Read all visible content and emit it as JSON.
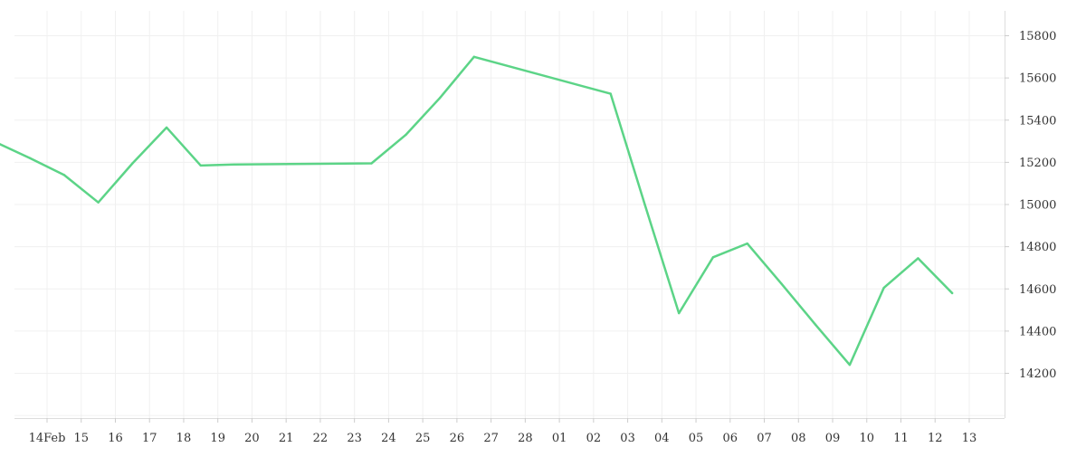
{
  "chart_data": {
    "type": "line",
    "title": "",
    "xlabel": "",
    "ylabel": "",
    "x_tick_labels": [
      "14Feb",
      "15",
      "16",
      "17",
      "18",
      "19",
      "20",
      "21",
      "22",
      "23",
      "24",
      "25",
      "26",
      "27",
      "28",
      "01",
      "02",
      "03",
      "04",
      "05",
      "06",
      "07",
      "08",
      "09",
      "10",
      "11",
      "12",
      "13"
    ],
    "y_ticks": [
      14200,
      14400,
      14600,
      14800,
      15000,
      15200,
      15400,
      15600,
      15800
    ],
    "ylim": [
      14000,
      15900
    ],
    "grid": true,
    "y_axis_position": "right",
    "series": [
      {
        "color": "#5cd487",
        "x": [
          "2024-02-13",
          "2024-02-14",
          "2024-02-15",
          "2024-02-16",
          "2024-02-17",
          "2024-02-18",
          "2024-02-19",
          "2024-02-20",
          "2024-02-24",
          "2024-02-25",
          "2024-02-26",
          "2024-02-27",
          "2024-03-02",
          "2024-03-03",
          "2024-03-04",
          "2024-03-05",
          "2024-03-06",
          "2024-03-07",
          "2024-03-08",
          "2024-03-09",
          "2024-03-10",
          "2024-03-11",
          "2024-03-12"
        ],
        "values": [
          15295,
          15220,
          15140,
          15010,
          15195,
          15365,
          15185,
          15190,
          15195,
          15330,
          15505,
          15700,
          15525,
          15000,
          14485,
          14750,
          14815,
          14625,
          14430,
          14240,
          14605,
          14745,
          14580
        ]
      }
    ]
  }
}
